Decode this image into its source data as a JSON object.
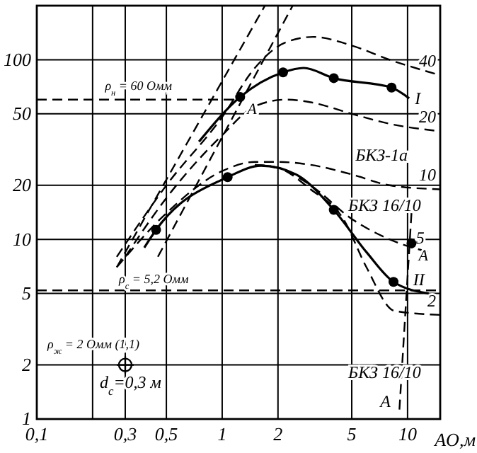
{
  "chart_data": {
    "type": "line",
    "xlabel": "AO,м",
    "log": "xy",
    "grid": true,
    "legend": false,
    "line_style": "dashed",
    "marker": "none",
    "xlim": [
      0.1,
      15
    ],
    "ylim": [
      1,
      200
    ],
    "xticks": [
      {
        "value": 0.1,
        "label": "0,1"
      },
      {
        "value": 0.2,
        "label": null
      },
      {
        "value": 0.3,
        "label": "0,3"
      },
      {
        "value": 0.5,
        "label": "0,5"
      },
      1,
      2,
      5,
      10
    ],
    "yticks": [
      1,
      2,
      5,
      10,
      20,
      50,
      100
    ],
    "series": [
      {
        "name": "40",
        "color": "#000000",
        "x": [
          0.27,
          0.5,
          1,
          1.5,
          2.2,
          3.1,
          5,
          8,
          15
        ],
        "values": [
          8,
          20,
          48,
          90,
          125,
          134,
          120,
          100,
          82
        ]
      },
      {
        "name": "20",
        "color": "#000000",
        "x": [
          0.3,
          0.5,
          1,
          1.5,
          2.2,
          3,
          5,
          8,
          15
        ],
        "values": [
          8,
          17,
          38,
          55,
          60,
          58,
          50,
          44,
          40
        ]
      },
      {
        "name": "10",
        "color": "#000000",
        "x": [
          0.27,
          0.5,
          1,
          1.5,
          2,
          3,
          5,
          8,
          15
        ],
        "values": [
          7,
          14,
          24,
          27,
          27,
          26,
          23,
          20,
          19
        ]
      },
      {
        "name": "5",
        "color": "#000000",
        "x": [
          1.5,
          2,
          3,
          5,
          8,
          13
        ],
        "values": [
          26,
          25,
          20,
          13,
          10,
          8.5
        ]
      },
      {
        "name": "2",
        "color": "#000000",
        "x": [
          1.5,
          2,
          3,
          4.5,
          6,
          8.5,
          15
        ],
        "values": [
          26,
          25,
          19,
          13,
          7,
          4,
          3.8
        ]
      },
      {
        "color": "#000000",
        "x": [
          0.45,
          2.4
        ],
        "values": [
          8,
          200
        ]
      },
      {
        "color": "#000000",
        "x": [
          0.27,
          1.7
        ],
        "values": [
          7,
          200
        ]
      },
      {
        "name": "A",
        "color": "#000000",
        "x": [
          10.5,
          9
        ],
        "values": [
          14,
          1.05
        ]
      },
      {
        "name": "ρ$_{н}$ = 60 Омм",
        "color": "#000000",
        "x": [
          0.1,
          1.25
        ],
        "values": [
          60,
          60
        ]
      },
      {
        "name": "I",
        "color": "#000000",
        "line_style": "solid",
        "x": [
          0.75,
          1.25,
          2.13,
          2.75,
          4,
          8.2,
          10.2
        ],
        "values": [
          35,
          62,
          85,
          90,
          79,
          70,
          61
        ]
      },
      {
        "name": "II",
        "color": "#000000",
        "line_style": "solid",
        "x": [
          0.38,
          0.44,
          1.07,
          1.62,
          2.5,
          4,
          6,
          8.4,
          13
        ],
        "values": [
          9,
          11.3,
          22.2,
          25.7,
          23,
          14.6,
          8.5,
          5.8,
          5
        ]
      },
      {
        "type": "scatter",
        "color": "#000000",
        "marker": "circle",
        "x": [
          1.25,
          2.13,
          4,
          8.2,
          0.44,
          1.07,
          4,
          8.4,
          10.5
        ],
        "values": [
          62,
          85,
          79,
          70,
          11.3,
          22.2,
          14.6,
          5.8,
          9.5
        ]
      },
      {
        "type": "scatter",
        "color": "#000000",
        "marker": "cross",
        "x": [
          0.3
        ],
        "values": [
          2
        ]
      }
    ],
    "ref_lines": [
      {
        "axis": "y",
        "value": 5.2,
        "label": "ρ$_{с}$ = 5,2 Омм",
        "line_style": "dashed"
      }
    ],
    "annotations": [
      {
        "text": "A",
        "x": 1.25,
        "y": 62
      },
      {
        "text": "A",
        "x": 10.5,
        "y": 9.5
      },
      "БКЗ-1а",
      "БКЗ 16/10",
      "БКЗ 16/10",
      {
        "text": "ρ$_{ж}$ = 2 Омм (1,1)",
        "x": 0.3,
        "y": 2
      },
      {
        "text": "d$_{c}$=0,3 м",
        "x": 0.3,
        "y": 2
      }
    ]
  }
}
